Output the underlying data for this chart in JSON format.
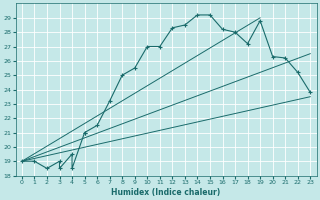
{
  "xlabel": "Humidex (Indice chaleur)",
  "xlim": [
    -0.5,
    23.5
  ],
  "ylim": [
    18,
    30
  ],
  "yticks": [
    18,
    19,
    20,
    21,
    22,
    23,
    24,
    25,
    26,
    27,
    28,
    29
  ],
  "xticks": [
    0,
    1,
    2,
    3,
    4,
    5,
    6,
    7,
    8,
    9,
    10,
    11,
    12,
    13,
    14,
    15,
    16,
    17,
    18,
    19,
    20,
    21,
    22,
    23
  ],
  "bg_color": "#c5e8e8",
  "line_color": "#1a6b6b",
  "grid_color": "#ffffff",
  "series1_x": [
    0,
    1,
    2,
    3,
    3,
    4,
    4,
    5,
    5,
    6,
    7,
    8,
    9,
    10,
    11,
    12,
    13,
    14,
    15,
    16,
    17,
    18,
    19,
    20,
    21,
    22,
    23
  ],
  "series1_y": [
    19,
    19,
    18.5,
    19,
    18.5,
    19.5,
    18.5,
    21.0,
    21.0,
    21.5,
    23.2,
    25.0,
    25.5,
    27.0,
    27.0,
    28.3,
    28.5,
    29.2,
    29.2,
    28.2,
    28.0,
    27.2,
    28.8,
    26.3,
    26.2,
    25.2,
    23.8
  ],
  "series2_x": [
    0,
    23
  ],
  "series2_y": [
    19,
    23.5
  ],
  "series3_x": [
    0,
    19
  ],
  "series3_y": [
    19,
    29.0
  ],
  "series4_x": [
    0,
    23
  ],
  "series4_y": [
    19,
    26.5
  ]
}
